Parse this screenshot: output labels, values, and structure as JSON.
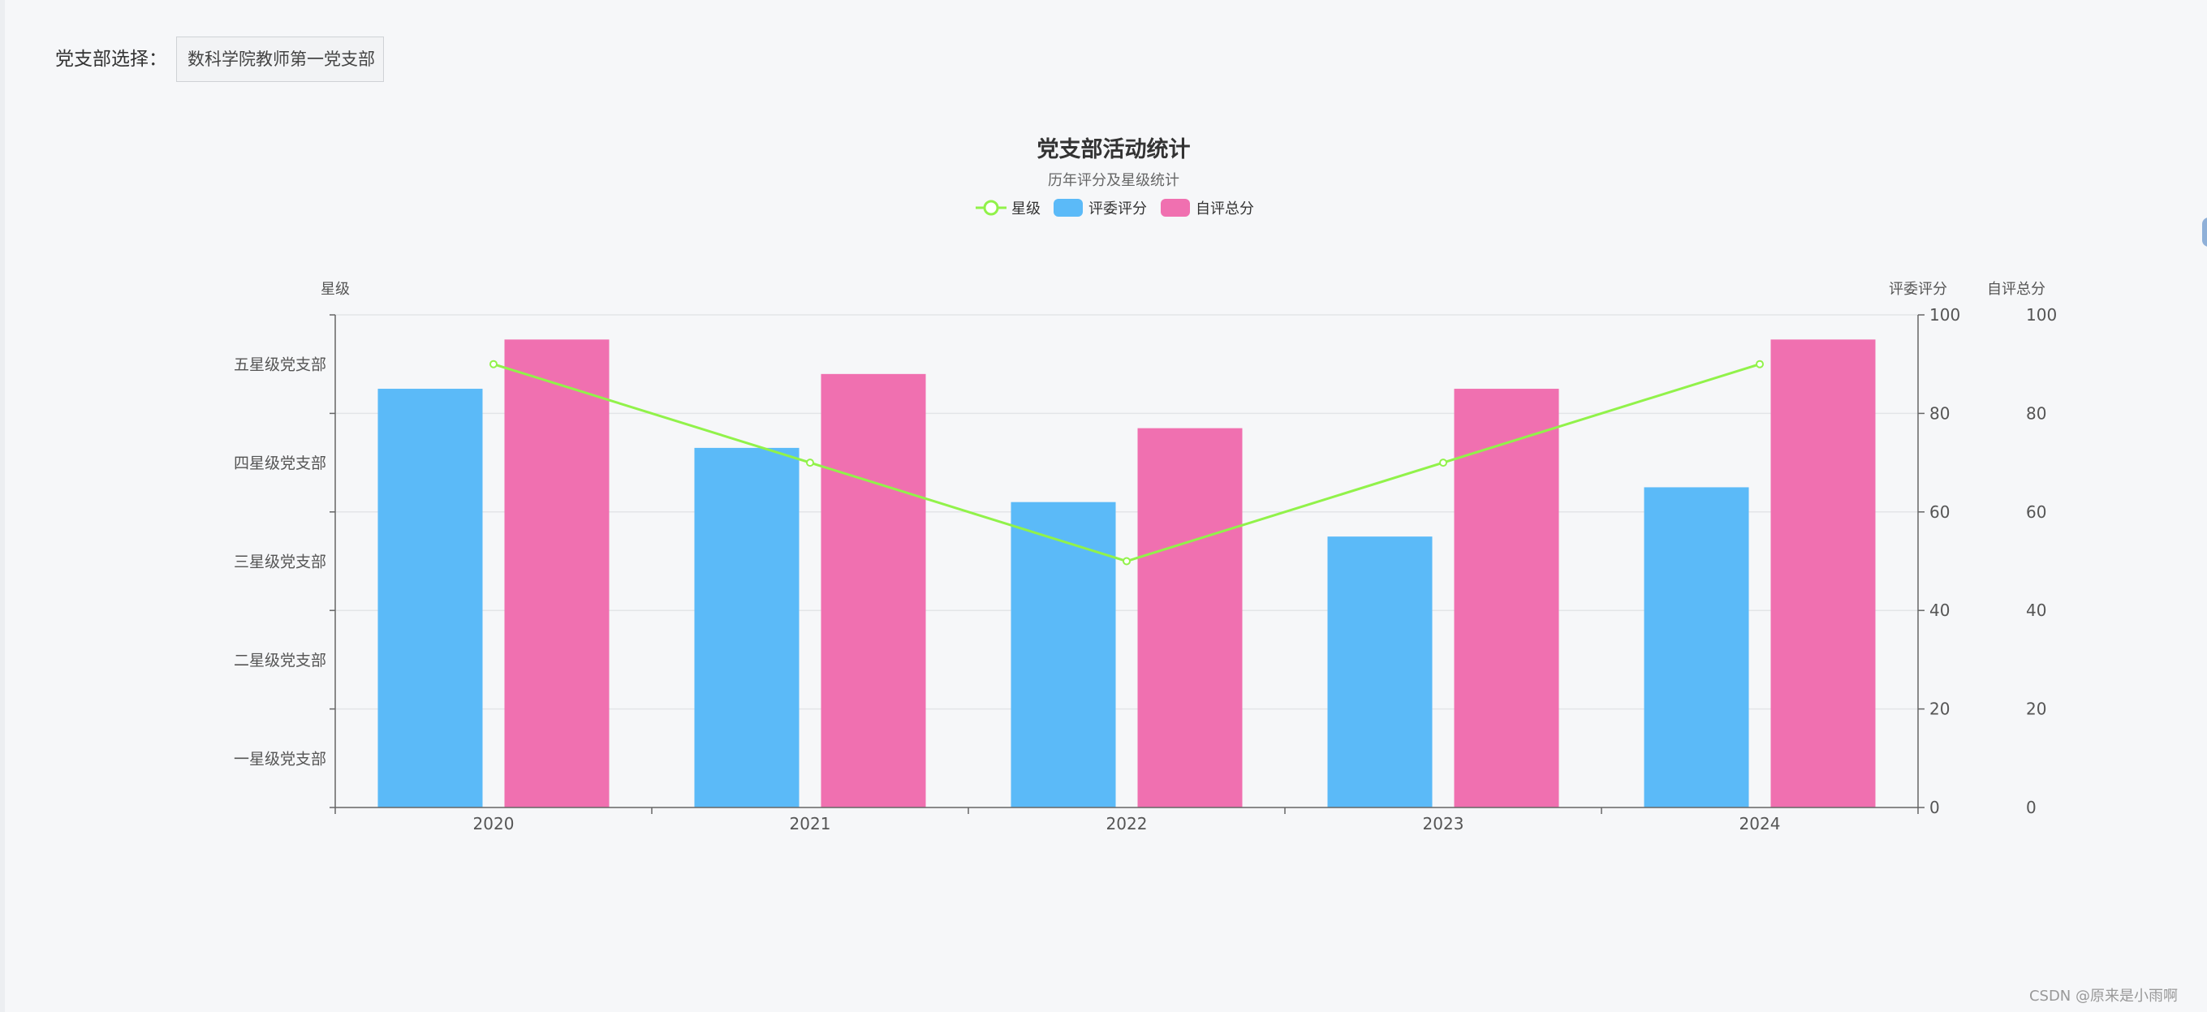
{
  "selector": {
    "label": "党支部选择：",
    "value": "数科学院教师第一党支部"
  },
  "chart_data": {
    "type": "bar",
    "title": "党支部活动统计",
    "subtitle": "历年评分及星级统计",
    "categories": [
      "2020",
      "2021",
      "2022",
      "2023",
      "2024"
    ],
    "legend": {
      "placement": "top-center",
      "items": [
        {
          "name": "星级",
          "kind": "line",
          "color": "#91f24a"
        },
        {
          "name": "评委评分",
          "kind": "bar",
          "color": "#5bbaf8"
        },
        {
          "name": "自评总分",
          "kind": "bar",
          "color": "#f070b0"
        }
      ]
    },
    "series": [
      {
        "name": "评委评分",
        "type": "bar",
        "axis": "y-right-1",
        "color": "#5bbaf8",
        "values": [
          85,
          73,
          62,
          55,
          65
        ]
      },
      {
        "name": "自评总分",
        "type": "bar",
        "axis": "y-right-2",
        "color": "#f070b0",
        "values": [
          95,
          88,
          77,
          85,
          95
        ]
      },
      {
        "name": "星级",
        "type": "line",
        "axis": "y-left",
        "color": "#91f24a",
        "values": [
          90,
          70,
          50,
          70,
          90
        ]
      }
    ],
    "y_left": {
      "name": "星级",
      "categories": [
        "一星级党支部",
        "二星级党支部",
        "三星级党支部",
        "四星级党支部",
        "五星级党支部"
      ],
      "category_values": [
        10,
        30,
        50,
        70,
        90
      ],
      "range": [
        0,
        100
      ]
    },
    "y_right_1": {
      "name": "评委评分",
      "range": [
        0,
        100
      ],
      "ticks": [
        "0",
        "20",
        "40",
        "60",
        "80",
        "100"
      ]
    },
    "y_right_2": {
      "name": "自评总分",
      "range": [
        0,
        100
      ],
      "ticks": [
        "0",
        "20",
        "40",
        "60",
        "80",
        "100"
      ]
    },
    "grid": true
  },
  "watermark": "CSDN @原来是小雨啊"
}
